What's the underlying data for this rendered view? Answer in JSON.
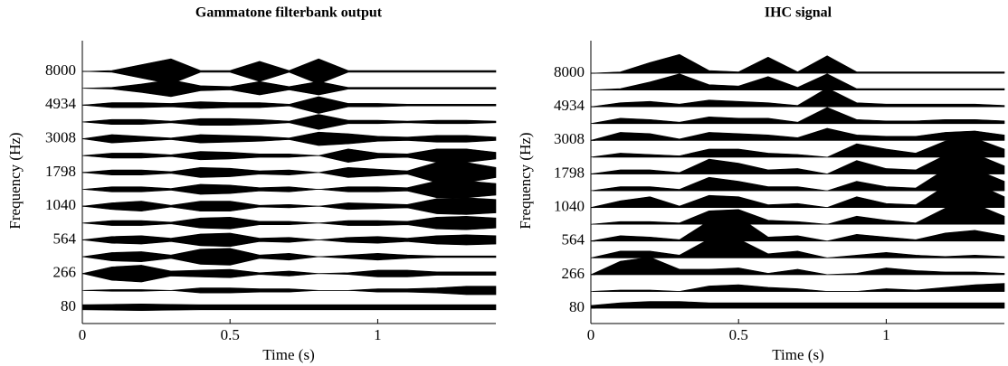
{
  "chart_data": [
    {
      "type": "waveform",
      "title": "Gammatone filterbank output",
      "xlabel": "Time (s)",
      "ylabel": "Frequency (Hz)",
      "color": "#000000",
      "xlim": [
        0,
        1.4
      ],
      "xticks": [
        0,
        0.5,
        1
      ],
      "x": [
        0,
        0.1,
        0.2,
        0.3,
        0.4,
        0.5,
        0.6,
        0.7,
        0.8,
        0.9,
        1.0,
        1.1,
        1.2,
        1.3,
        1.4
      ],
      "categories": [
        "80",
        null,
        "266",
        null,
        "564",
        null,
        "1040",
        null,
        "1798",
        null,
        "3008",
        null,
        "4934",
        null,
        "8000"
      ],
      "series": [
        {
          "values": [
            0.3,
            0.35,
            0.4,
            0.35,
            0.3,
            0.3,
            0.3,
            0.3,
            0.3,
            0.3,
            0.3,
            0.3,
            0.3,
            0.3,
            0.3
          ]
        },
        {
          "values": [
            0,
            0.1,
            0.1,
            0,
            0.3,
            0.3,
            0.2,
            0.2,
            0,
            0,
            0.2,
            0.2,
            0.3,
            0.5,
            0.5
          ]
        },
        {
          "values": [
            0,
            0.8,
            1.0,
            0.3,
            0.4,
            0.5,
            0.1,
            0.3,
            0,
            0.1,
            0.4,
            0.4,
            0.2,
            0.2,
            0.2
          ]
        },
        {
          "values": [
            0,
            0.5,
            0.6,
            0.2,
            0.9,
            1.0,
            0.2,
            0.4,
            0,
            0.2,
            0.4,
            0.2,
            0.1,
            0.1,
            0.1
          ]
        },
        {
          "values": [
            0,
            0.4,
            0.5,
            0.2,
            0.7,
            0.8,
            0.2,
            0.3,
            0,
            0.3,
            0.4,
            0.2,
            0.5,
            0.6,
            0.5
          ]
        },
        {
          "values": [
            0,
            0.3,
            0.3,
            0.1,
            0.6,
            0.7,
            0.2,
            0.2,
            0,
            0.3,
            0.3,
            0.2,
            0.7,
            0.8,
            0.6
          ]
        },
        {
          "values": [
            0,
            0.4,
            0.6,
            0.1,
            0.6,
            0.6,
            0.1,
            0.2,
            0,
            0.4,
            0.3,
            0.2,
            0.9,
            1.0,
            0.8
          ]
        },
        {
          "values": [
            0,
            0.3,
            0.3,
            0.1,
            0.6,
            0.5,
            0.2,
            0.3,
            0,
            0.3,
            0.3,
            0.2,
            1.0,
            1.0,
            0.7
          ]
        },
        {
          "values": [
            0,
            0.3,
            0.3,
            0.1,
            0.6,
            0.5,
            0.2,
            0.3,
            0,
            0.6,
            0.4,
            0.2,
            1.2,
            1.2,
            0.6
          ]
        },
        {
          "values": [
            0,
            0.3,
            0.3,
            0.1,
            0.5,
            0.4,
            0.2,
            0.2,
            0,
            0.8,
            0.3,
            0.2,
            0.8,
            0.8,
            0.4
          ]
        },
        {
          "values": [
            0,
            0.5,
            0.3,
            0.1,
            0.5,
            0.4,
            0.3,
            0.1,
            0.8,
            0.6,
            0.3,
            0.2,
            0.4,
            0.4,
            0.2
          ]
        },
        {
          "values": [
            0,
            0.3,
            0.3,
            0.1,
            0.4,
            0.4,
            0.3,
            0.1,
            0.9,
            0.2,
            0.2,
            0.1,
            0.2,
            0.2,
            0.1
          ]
        },
        {
          "values": [
            0,
            0.3,
            0.3,
            0.2,
            0.4,
            0.3,
            0.3,
            0.1,
            1.0,
            0.2,
            0.2,
            0.1,
            0.1,
            0.1,
            0.1
          ]
        },
        {
          "values": [
            0,
            0.1,
            0.5,
            1.0,
            0.3,
            0.2,
            0.8,
            0.2,
            0.8,
            0.1,
            0.1,
            0.1,
            0.1,
            0.1,
            0.1
          ]
        },
        {
          "values": [
            0,
            0.1,
            0.8,
            1.5,
            0.1,
            0.1,
            1.2,
            0.1,
            1.5,
            0.1,
            0.1,
            0.1,
            0.1,
            0.1,
            0.1
          ]
        }
      ]
    },
    {
      "type": "rectified",
      "title": "IHC signal",
      "xlabel": "Time (s)",
      "ylabel": "Frequency (Hz)",
      "color": "#000000",
      "xlim": [
        0,
        1.4
      ],
      "xticks": [
        0,
        0.5,
        1
      ],
      "x": [
        0,
        0.1,
        0.2,
        0.3,
        0.4,
        0.5,
        0.6,
        0.7,
        0.8,
        0.9,
        1.0,
        1.1,
        1.2,
        1.3,
        1.4
      ],
      "categories": [
        "80",
        null,
        "266",
        null,
        "564",
        null,
        "1040",
        null,
        "1798",
        null,
        "3008",
        null,
        "4934",
        null,
        "8000"
      ],
      "series": [
        {
          "values": [
            0.2,
            0.4,
            0.5,
            0.5,
            0.4,
            0.4,
            0.4,
            0.4,
            0.4,
            0.4,
            0.4,
            0.4,
            0.4,
            0.4,
            0.4
          ]
        },
        {
          "values": [
            0,
            0.1,
            0.1,
            0,
            0.4,
            0.5,
            0.3,
            0.2,
            0,
            0,
            0.2,
            0.1,
            0.3,
            0.5,
            0.6
          ]
        },
        {
          "values": [
            0,
            1.0,
            1.3,
            0.4,
            0.4,
            0.5,
            0.1,
            0.4,
            0,
            0.1,
            0.5,
            0.3,
            0.2,
            0.2,
            0.1
          ]
        },
        {
          "values": [
            0,
            0.5,
            0.5,
            0.2,
            1.4,
            1.4,
            0.3,
            0.5,
            0,
            0.2,
            0.4,
            0.2,
            0.1,
            0.2,
            0.1
          ]
        },
        {
          "values": [
            0,
            0.4,
            0.3,
            0.1,
            1.5,
            1.8,
            0.3,
            0.4,
            0,
            0.5,
            0.3,
            0.1,
            0.6,
            0.8,
            0.4
          ]
        },
        {
          "values": [
            0,
            0.2,
            0.2,
            0.1,
            1.0,
            1.1,
            0.3,
            0.2,
            0,
            0.6,
            0.3,
            0.1,
            1.2,
            1.5,
            0.6
          ]
        },
        {
          "values": [
            0,
            0.5,
            0.8,
            0.1,
            0.9,
            0.8,
            0.2,
            0.3,
            0,
            0.8,
            0.3,
            0.2,
            1.6,
            1.8,
            0.8
          ]
        },
        {
          "values": [
            0,
            0.3,
            0.3,
            0.1,
            1.0,
            0.7,
            0.3,
            0.3,
            0,
            0.7,
            0.3,
            0.2,
            1.6,
            1.6,
            0.7
          ]
        },
        {
          "values": [
            0,
            0.3,
            0.3,
            0.1,
            1.1,
            0.8,
            0.3,
            0.4,
            0,
            1.0,
            0.4,
            0.3,
            1.4,
            1.5,
            0.6
          ]
        },
        {
          "values": [
            0,
            0.3,
            0.2,
            0.1,
            0.6,
            0.6,
            0.3,
            0.2,
            0,
            1.0,
            0.6,
            0.3,
            1.2,
            1.4,
            0.6
          ]
        },
        {
          "values": [
            0,
            0.6,
            0.5,
            0.1,
            0.6,
            0.5,
            0.4,
            0.2,
            0.9,
            0.4,
            0.3,
            0.3,
            0.6,
            0.7,
            0.4
          ]
        },
        {
          "values": [
            0,
            0.4,
            0.3,
            0.1,
            0.5,
            0.4,
            0.4,
            0.1,
            1.2,
            0.3,
            0.2,
            0.2,
            0.3,
            0.3,
            0.2
          ]
        },
        {
          "values": [
            0,
            0.3,
            0.4,
            0.2,
            0.5,
            0.4,
            0.3,
            0.1,
            1.4,
            0.3,
            0.2,
            0.2,
            0.2,
            0.2,
            0.1
          ]
        },
        {
          "values": [
            0,
            0.1,
            0.6,
            1.2,
            0.4,
            0.3,
            1.0,
            0.2,
            1.2,
            0.1,
            0.1,
            0.1,
            0.1,
            0.1,
            0.1
          ]
        },
        {
          "values": [
            0,
            0.1,
            0.8,
            1.4,
            0.2,
            0.1,
            1.2,
            0.1,
            1.3,
            0.1,
            0.1,
            0.1,
            0.1,
            0.1,
            0.1
          ]
        }
      ]
    }
  ]
}
